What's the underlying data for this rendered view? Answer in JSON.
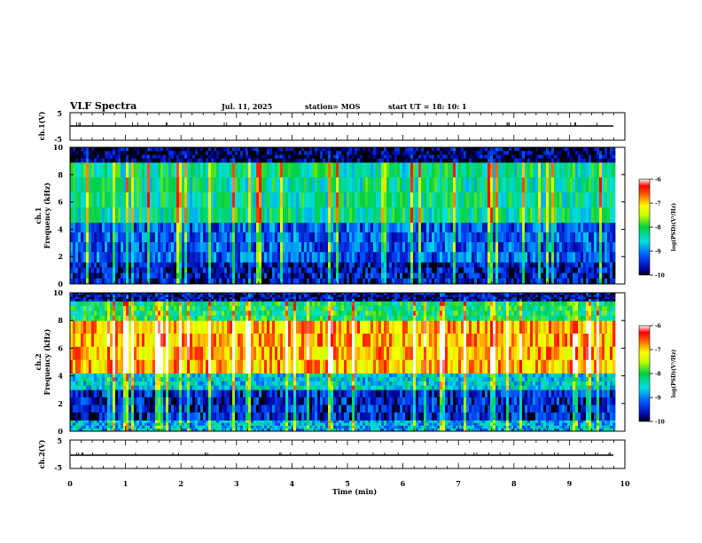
{
  "header": {
    "title": "VLF Spectra",
    "date": "Jul. 11, 2025",
    "station": "station= MOS",
    "start": "start UT = 18: 10: 1"
  },
  "chart_data": [
    {
      "type": "line",
      "panel": "ch1-waveform",
      "ylabel": "ch.1(V)",
      "yticks": [
        "5",
        "-5"
      ],
      "ylim": [
        -5,
        5
      ],
      "xlim": [
        0,
        10
      ],
      "series": [
        {
          "x": [
            0,
            9.8
          ],
          "values": [
            -1.3,
            -1.3
          ]
        }
      ]
    },
    {
      "type": "heatmap",
      "panel": "ch1-spectrogram",
      "ylabel": [
        "ch.1",
        "Frequency (kHz)"
      ],
      "yticks": [
        "0",
        "2",
        "4",
        "6",
        "8",
        "10"
      ],
      "ylim": [
        0,
        10
      ],
      "xlim": [
        0,
        10
      ],
      "colorbar": {
        "label": "log(PSD)(V²/Hz)",
        "ticks": [
          "-6",
          "-7",
          "-8",
          "-9",
          "-10"
        ],
        "range": [
          -10,
          -6
        ]
      },
      "bands": [
        {
          "from": 0,
          "to": 1.6,
          "level": -9.6
        },
        {
          "from": 1.6,
          "to": 4.5,
          "level": -9.2
        },
        {
          "from": 4.5,
          "to": 8.9,
          "level": -8.3
        },
        {
          "from": 8.9,
          "to": 10,
          "level": -9.9
        }
      ]
    },
    {
      "type": "heatmap",
      "panel": "ch2-spectrogram",
      "ylabel": [
        "ch.2",
        "Frequency (kHz)"
      ],
      "yticks": [
        "0",
        "2",
        "4",
        "6",
        "8",
        "10"
      ],
      "ylim": [
        0,
        10
      ],
      "xlim": [
        0,
        10
      ],
      "colorbar": {
        "label": "log(PSD)(V²/Hz)",
        "ticks": [
          "-6",
          "-7",
          "-8",
          "-9",
          "-10"
        ],
        "range": [
          -10,
          -6
        ]
      },
      "bands": [
        {
          "from": 0,
          "to": 0.8,
          "level": -8.8
        },
        {
          "from": 0.8,
          "to": 3.0,
          "level": -9.5
        },
        {
          "from": 3.0,
          "to": 4.2,
          "level": -8.6
        },
        {
          "from": 4.2,
          "to": 8.0,
          "level": -6.9
        },
        {
          "from": 8.0,
          "to": 9.4,
          "level": -8.2
        },
        {
          "from": 9.4,
          "to": 10,
          "level": -9.7
        }
      ]
    },
    {
      "type": "line",
      "panel": "ch2-waveform",
      "ylabel": "ch.2(V)",
      "yticks": [
        "5",
        "-5"
      ],
      "ylim": [
        -5,
        5
      ],
      "xlim": [
        0,
        10
      ],
      "series": [
        {
          "x": [
            0,
            9.8
          ],
          "values": [
            -1.3,
            -1.3
          ]
        }
      ]
    }
  ],
  "xaxis": {
    "label": "Time (min)",
    "ticks": [
      "0",
      "1",
      "2",
      "3",
      "4",
      "5",
      "6",
      "7",
      "8",
      "9",
      "10"
    ],
    "range": [
      0,
      10
    ]
  }
}
